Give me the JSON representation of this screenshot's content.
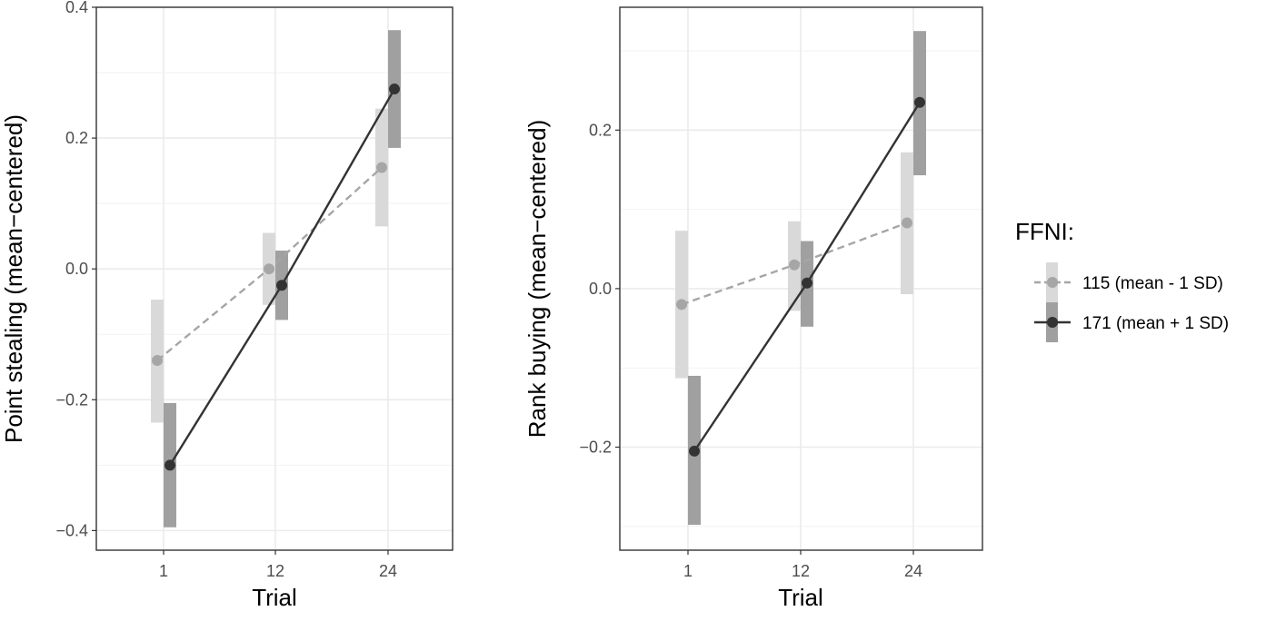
{
  "chart_data": [
    {
      "type": "line",
      "xlabel": "Trial",
      "ylabel": "Point stealing (mean−centered)",
      "categories": [
        "1",
        "12",
        "24"
      ],
      "ylim": [
        -0.43,
        0.4
      ],
      "yticks": [
        "−0.4",
        "−0.2",
        "0.0",
        "0.2",
        "0.4"
      ],
      "ytick_values": [
        -0.4,
        -0.2,
        0.0,
        0.2,
        0.4
      ],
      "grid": true,
      "series": [
        {
          "name": "115 (mean - 1 SD)",
          "values": [
            -0.14,
            0.0,
            0.155
          ],
          "lower": [
            -0.235,
            -0.055,
            0.065
          ],
          "upper": [
            -0.047,
            0.055,
            0.245
          ],
          "line_style": "dashed",
          "color": "#a6a6a6",
          "band_color": "#d9d9d9"
        },
        {
          "name": "171 (mean + 1 SD)",
          "values": [
            -0.3,
            -0.025,
            0.275
          ],
          "lower": [
            -0.395,
            -0.078,
            0.185
          ],
          "upper": [
            -0.205,
            0.028,
            0.365
          ],
          "line_style": "solid",
          "color": "#333333",
          "band_color": "#a0a0a0"
        }
      ]
    },
    {
      "type": "line",
      "xlabel": "Trial",
      "ylabel": "Rank buying (mean−centered)",
      "categories": [
        "1",
        "12",
        "24"
      ],
      "ylim": [
        -0.33,
        0.355
      ],
      "yticks": [
        "−0.2",
        "0.0",
        "0.2"
      ],
      "ytick_values": [
        -0.2,
        0.0,
        0.2
      ],
      "grid": true,
      "series": [
        {
          "name": "115 (mean - 1 SD)",
          "values": [
            -0.02,
            0.03,
            0.083
          ],
          "lower": [
            -0.113,
            -0.028,
            -0.007
          ],
          "upper": [
            0.073,
            0.085,
            0.172
          ],
          "line_style": "dashed",
          "color": "#a6a6a6",
          "band_color": "#d9d9d9"
        },
        {
          "name": "171 (mean + 1 SD)",
          "values": [
            -0.205,
            0.007,
            0.235
          ],
          "lower": [
            -0.298,
            -0.048,
            0.143
          ],
          "upper": [
            -0.11,
            0.06,
            0.325
          ],
          "line_style": "solid",
          "color": "#333333",
          "band_color": "#a0a0a0"
        }
      ]
    }
  ],
  "legend": {
    "title": "FFNI:",
    "placement": "right",
    "items": [
      "115 (mean - 1 SD)",
      "171 (mean + 1 SD)"
    ]
  }
}
